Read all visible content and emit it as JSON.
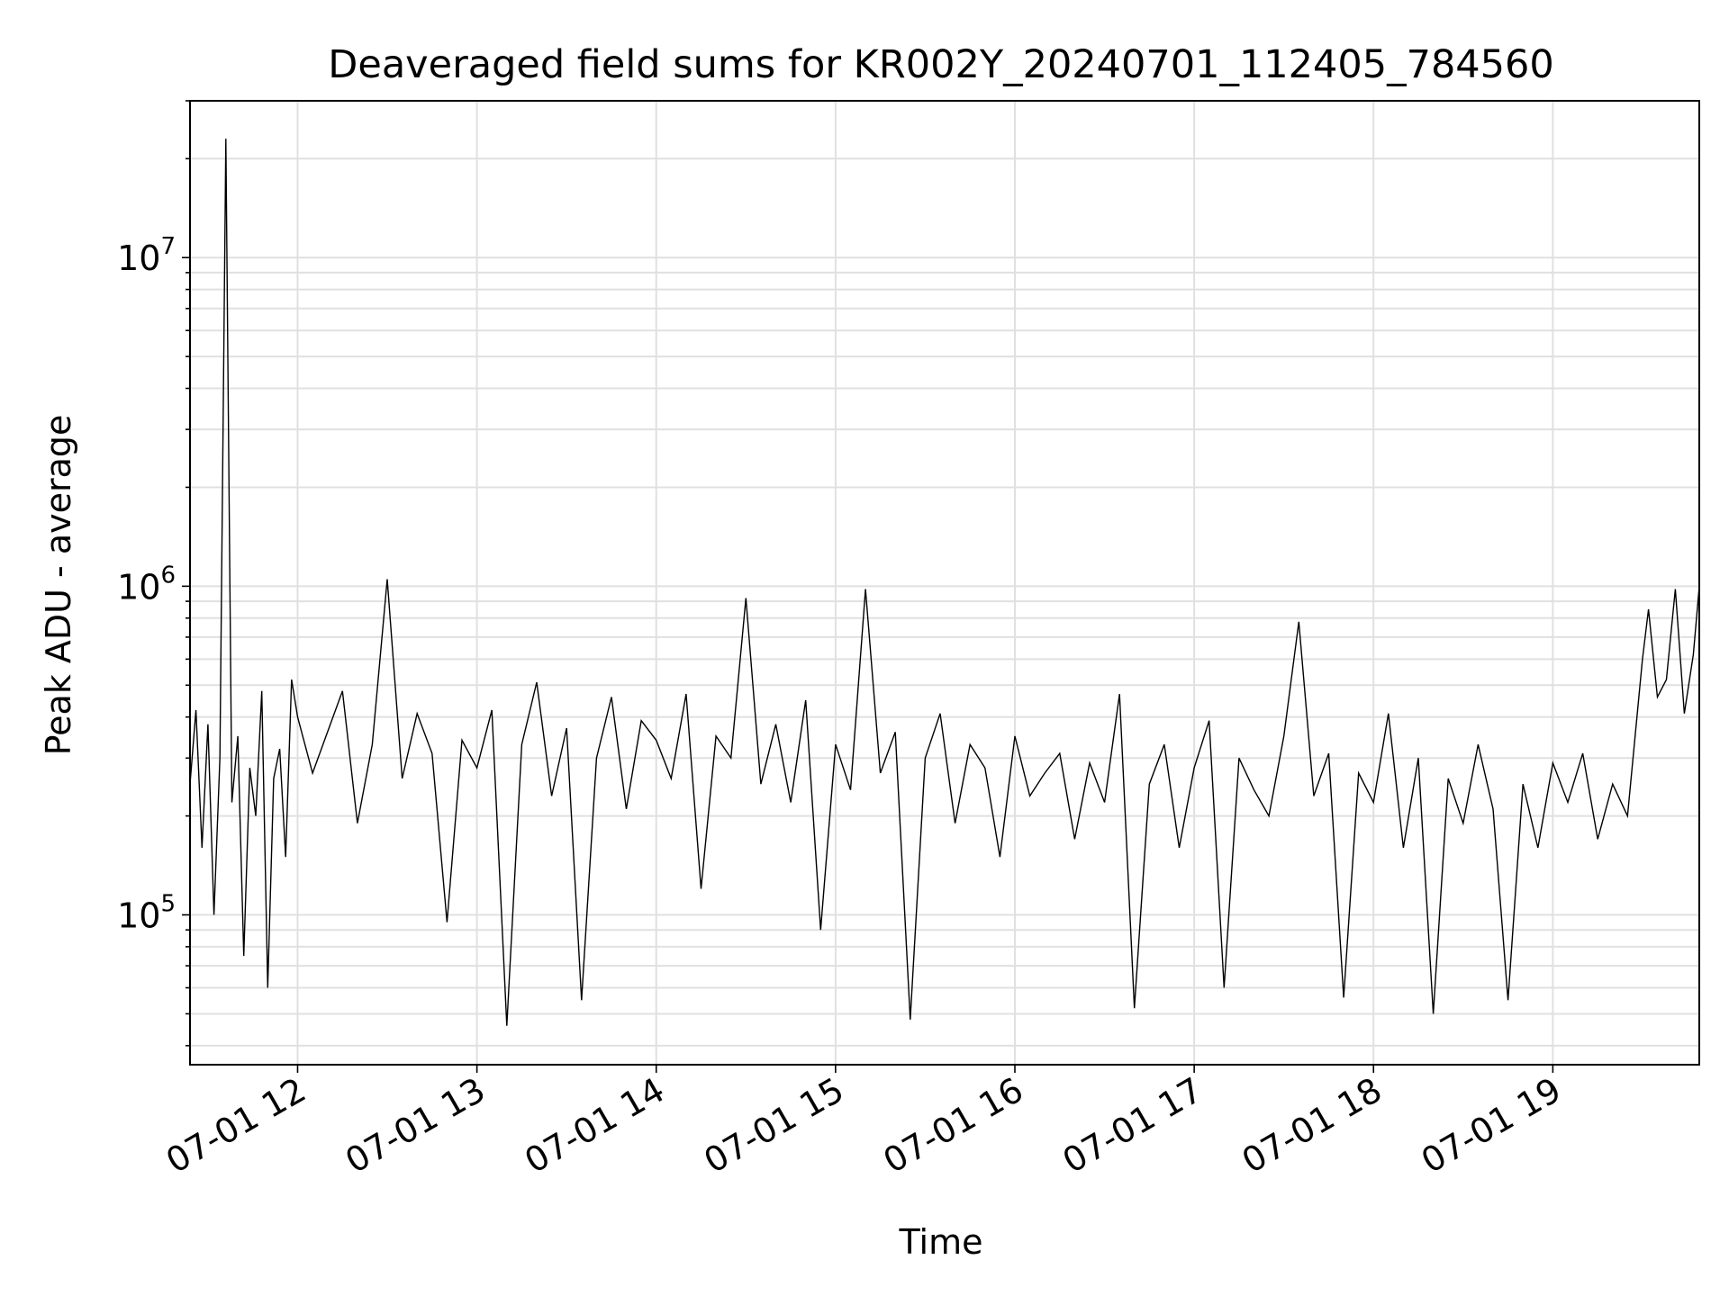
{
  "chart_data": {
    "type": "line",
    "title": "Deaveraged field sums for KR002Y_20240701_112405_784560",
    "xlabel": "Time",
    "ylabel": "Peak ADU - average",
    "yscale": "log",
    "ylim": [
      35000,
      30000000
    ],
    "xlim": [
      "2024-07-01 11:24",
      "2024-07-01 19:49"
    ],
    "grid": true,
    "line_color": "#000000",
    "x_ticks": [
      {
        "time": "2024-07-01 12:00",
        "label": "07-01 12"
      },
      {
        "time": "2024-07-01 13:00",
        "label": "07-01 13"
      },
      {
        "time": "2024-07-01 14:00",
        "label": "07-01 14"
      },
      {
        "time": "2024-07-01 15:00",
        "label": "07-01 15"
      },
      {
        "time": "2024-07-01 16:00",
        "label": "07-01 16"
      },
      {
        "time": "2024-07-01 17:00",
        "label": "07-01 17"
      },
      {
        "time": "2024-07-01 18:00",
        "label": "07-01 18"
      },
      {
        "time": "2024-07-01 19:00",
        "label": "07-01 19"
      }
    ],
    "y_ticks": [
      {
        "value": 100000,
        "base": "10",
        "exp": "5"
      },
      {
        "value": 1000000,
        "base": "10",
        "exp": "6"
      },
      {
        "value": 10000000,
        "base": "10",
        "exp": "7"
      }
    ],
    "series": [
      {
        "x": [
          "2024-07-01 11:24",
          "2024-07-01 11:26",
          "2024-07-01 11:28",
          "2024-07-01 11:30",
          "2024-07-01 11:32",
          "2024-07-01 11:34",
          "2024-07-01 11:36",
          "2024-07-01 11:38",
          "2024-07-01 11:40",
          "2024-07-01 11:42",
          "2024-07-01 11:44",
          "2024-07-01 11:46",
          "2024-07-01 11:48",
          "2024-07-01 11:50",
          "2024-07-01 11:52",
          "2024-07-01 11:54",
          "2024-07-01 11:56",
          "2024-07-01 11:58",
          "2024-07-01 12:00",
          "2024-07-01 12:05",
          "2024-07-01 12:10",
          "2024-07-01 12:15",
          "2024-07-01 12:20",
          "2024-07-01 12:25",
          "2024-07-01 12:30",
          "2024-07-01 12:35",
          "2024-07-01 12:40",
          "2024-07-01 12:45",
          "2024-07-01 12:50",
          "2024-07-01 12:55",
          "2024-07-01 13:00",
          "2024-07-01 13:05",
          "2024-07-01 13:10",
          "2024-07-01 13:15",
          "2024-07-01 13:20",
          "2024-07-01 13:25",
          "2024-07-01 13:30",
          "2024-07-01 13:35",
          "2024-07-01 13:40",
          "2024-07-01 13:45",
          "2024-07-01 13:50",
          "2024-07-01 13:55",
          "2024-07-01 14:00",
          "2024-07-01 14:05",
          "2024-07-01 14:10",
          "2024-07-01 14:15",
          "2024-07-01 14:20",
          "2024-07-01 14:25",
          "2024-07-01 14:30",
          "2024-07-01 14:35",
          "2024-07-01 14:40",
          "2024-07-01 14:45",
          "2024-07-01 14:50",
          "2024-07-01 14:55",
          "2024-07-01 15:00",
          "2024-07-01 15:05",
          "2024-07-01 15:10",
          "2024-07-01 15:15",
          "2024-07-01 15:20",
          "2024-07-01 15:25",
          "2024-07-01 15:30",
          "2024-07-01 15:35",
          "2024-07-01 15:40",
          "2024-07-01 15:45",
          "2024-07-01 15:50",
          "2024-07-01 15:55",
          "2024-07-01 16:00",
          "2024-07-01 16:05",
          "2024-07-01 16:10",
          "2024-07-01 16:15",
          "2024-07-01 16:20",
          "2024-07-01 16:25",
          "2024-07-01 16:30",
          "2024-07-01 16:35",
          "2024-07-01 16:40",
          "2024-07-01 16:45",
          "2024-07-01 16:50",
          "2024-07-01 16:55",
          "2024-07-01 17:00",
          "2024-07-01 17:05",
          "2024-07-01 17:10",
          "2024-07-01 17:15",
          "2024-07-01 17:20",
          "2024-07-01 17:25",
          "2024-07-01 17:30",
          "2024-07-01 17:35",
          "2024-07-01 17:40",
          "2024-07-01 17:45",
          "2024-07-01 17:50",
          "2024-07-01 17:55",
          "2024-07-01 18:00",
          "2024-07-01 18:05",
          "2024-07-01 18:10",
          "2024-07-01 18:15",
          "2024-07-01 18:20",
          "2024-07-01 18:25",
          "2024-07-01 18:30",
          "2024-07-01 18:35",
          "2024-07-01 18:40",
          "2024-07-01 18:45",
          "2024-07-01 18:50",
          "2024-07-01 18:55",
          "2024-07-01 19:00",
          "2024-07-01 19:05",
          "2024-07-01 19:10",
          "2024-07-01 19:15",
          "2024-07-01 19:20",
          "2024-07-01 19:25",
          "2024-07-01 19:30",
          "2024-07-01 19:32",
          "2024-07-01 19:35",
          "2024-07-01 19:38",
          "2024-07-01 19:41",
          "2024-07-01 19:44",
          "2024-07-01 19:47",
          "2024-07-01 19:49"
        ],
        "values": [
          250000,
          420000,
          160000,
          380000,
          100000,
          300000,
          23000000,
          220000,
          350000,
          75000,
          280000,
          200000,
          480000,
          60000,
          260000,
          320000,
          150000,
          520000,
          400000,
          270000,
          360000,
          480000,
          190000,
          330000,
          1050000,
          260000,
          410000,
          310000,
          95000,
          340000,
          280000,
          420000,
          46000,
          330000,
          510000,
          230000,
          370000,
          55000,
          300000,
          460000,
          210000,
          390000,
          340000,
          260000,
          470000,
          120000,
          350000,
          300000,
          920000,
          250000,
          380000,
          220000,
          450000,
          90000,
          330000,
          240000,
          980000,
          270000,
          360000,
          48000,
          300000,
          410000,
          190000,
          330000,
          280000,
          150000,
          350000,
          230000,
          270000,
          310000,
          170000,
          290000,
          220000,
          470000,
          52000,
          250000,
          330000,
          160000,
          280000,
          390000,
          60000,
          300000,
          240000,
          200000,
          350000,
          780000,
          230000,
          310000,
          56000,
          270000,
          220000,
          410000,
          160000,
          300000,
          50000,
          260000,
          190000,
          330000,
          210000,
          55000,
          250000,
          160000,
          290000,
          220000,
          310000,
          170000,
          250000,
          200000,
          600000,
          850000,
          460000,
          520000,
          980000,
          410000,
          620000,
          1000000
        ]
      }
    ]
  }
}
